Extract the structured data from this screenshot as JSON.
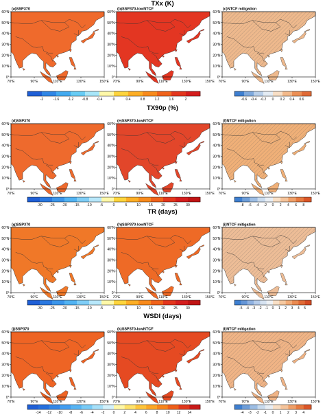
{
  "figure": {
    "rows": [
      {
        "title": "TXx (K)",
        "panels": [
          {
            "id": "(a)",
            "label": "(a)SSP370",
            "fill": "#ef6a2c",
            "hatch": false
          },
          {
            "id": "(b)",
            "label": "(b)SSP370-lowNTCF",
            "fill": "#e33622",
            "hatch": false
          },
          {
            "id": "(c)",
            "label": "(c)NTCF mitigation",
            "fill": "#eeb98d",
            "hatch": true
          }
        ],
        "colorbars": [
          {
            "labels": [
              "-2",
              "-1.6",
              "-1.2",
              "-0.8",
              "-0.4",
              "0",
              "0.4",
              "0.8",
              "1.2",
              "1.6",
              "2"
            ],
            "colors": [
              "#1f5fd6",
              "#2f86e6",
              "#42aaf0",
              "#67ccf5",
              "#a7e6f9",
              "#fff8a8",
              "#fed43c",
              "#fdae25",
              "#f88a1b",
              "#f0621a",
              "#e3361d",
              "#d41d1d"
            ]
          },
          {
            "labels": [
              "-0.6",
              "-0.4",
              "-0.2",
              "0",
              "0.2",
              "0.4",
              "0.6"
            ],
            "colors": [
              "#3e7fd0",
              "#7fa9dc",
              "#b9cfe9",
              "#e4ecf4",
              "#f8dfc6",
              "#f3b98a",
              "#ec8f55",
              "#e06a35"
            ]
          }
        ]
      },
      {
        "title": "TX90p (%)",
        "panels": [
          {
            "id": "(d)",
            "label": "(d)SSP370",
            "fill": "#ee6a2d",
            "hatch": false
          },
          {
            "id": "(e)",
            "label": "(e)SSP370-lowNTCF",
            "fill": "#e2462a",
            "hatch": false
          },
          {
            "id": "(f)",
            "label": "(f)NTCF mitigation",
            "fill": "#f0b078",
            "hatch": true
          }
        ],
        "colorbars": [
          {
            "labels": [
              "-30",
              "-25",
              "-20",
              "-15",
              "-10",
              "-5",
              "0",
              "5",
              "10",
              "15",
              "20",
              "25",
              "30"
            ],
            "colors": [
              "#1f5fd6",
              "#2a78e0",
              "#3b95ea",
              "#52b3f2",
              "#7fcdf6",
              "#b7e7fa",
              "#fff8a8",
              "#fed43c",
              "#fdae25",
              "#f88a1b",
              "#f0621a",
              "#e3361d",
              "#d41d1d",
              "#c01414"
            ]
          },
          {
            "labels": [
              "-8",
              "-6",
              "-4",
              "-2",
              "0",
              "2",
              "4",
              "6",
              "8"
            ],
            "colors": [
              "#3e7fd0",
              "#6d9dd8",
              "#9dbde3",
              "#c9dbee",
              "#e8eef4",
              "#f8dfc6",
              "#f4c39a",
              "#ef9f68",
              "#e67a40",
              "#da5628"
            ]
          }
        ]
      },
      {
        "title": "TR (days)",
        "panels": [
          {
            "id": "(g)",
            "label": "(g)SSP370",
            "fill": "#f07828",
            "hatch": false
          },
          {
            "id": "(h)",
            "label": "(h)SSP370-lowNTCF",
            "fill": "#ee6a26",
            "hatch": false
          },
          {
            "id": "(i)",
            "label": "(i)NTCF mitigation",
            "fill": "#edbd97",
            "hatch": true
          }
        ],
        "colorbars": [
          {
            "labels": [
              "-30",
              "-25",
              "-20",
              "-15",
              "-10",
              "-5",
              "0",
              "5",
              "10",
              "15",
              "20",
              "25",
              "30"
            ],
            "colors": [
              "#1f5fd6",
              "#2a78e0",
              "#3b95ea",
              "#52b3f2",
              "#7fcdf6",
              "#b7e7fa",
              "#fff8a8",
              "#fed43c",
              "#fdae25",
              "#f88a1b",
              "#f0621a",
              "#e3361d",
              "#d41d1d",
              "#c01414"
            ]
          },
          {
            "labels": [
              "-5",
              "-4",
              "-3",
              "-2",
              "-1",
              "0",
              "1",
              "2",
              "3",
              "4",
              "5"
            ],
            "colors": [
              "#3e7fd0",
              "#6495d6",
              "#8fb1df",
              "#b5cbe9",
              "#d6e2f0",
              "#eef1f4",
              "#f8dfc6",
              "#f5c8a0",
              "#f1aa76",
              "#ea8a50",
              "#e06a35",
              "#d44a22"
            ]
          }
        ]
      },
      {
        "title": "WSDI (days)",
        "panels": [
          {
            "id": "(j)",
            "label": "(j)SSP370",
            "fill": "#ee6424",
            "hatch": false
          },
          {
            "id": "(k)",
            "label": "(k)SSP370-lowNTCF",
            "fill": "#e54a22",
            "hatch": false
          },
          {
            "id": "(l)",
            "label": "(l)NTCF mitigation",
            "fill": "#f0b486",
            "hatch": true
          }
        ],
        "colorbars": [
          {
            "labels": [
              "-14",
              "-12",
              "-10",
              "-8",
              "-6",
              "-4",
              "-2",
              "0",
              "2",
              "4",
              "6",
              "8",
              "10",
              "12",
              "14"
            ],
            "colors": [
              "#1f5fd6",
              "#2670de",
              "#3286e6",
              "#419df0",
              "#57b4f3",
              "#78cbf6",
              "#a6e0f9",
              "#d3f1fb",
              "#fff8a8",
              "#fee26a",
              "#fec43a",
              "#fca625",
              "#f7841b",
              "#ee5f1a",
              "#e0371c",
              "#c81a18"
            ]
          },
          {
            "labels": [
              "-4",
              "-3",
              "-2",
              "-1",
              "0",
              "1",
              "2",
              "3",
              "4"
            ],
            "colors": [
              "#3e7fd0",
              "#6d9dd8",
              "#9dbde3",
              "#c9dbee",
              "#e8eef4",
              "#f8dfc6",
              "#f4c39a",
              "#ef9f68",
              "#e67a40",
              "#da5628"
            ]
          }
        ]
      }
    ],
    "lat_labels": [
      "60°N",
      "50°N",
      "40°N",
      "30°N",
      "20°N",
      "10°N",
      "0°"
    ],
    "lon_labels": [
      "70°E",
      "90°E",
      "110°E",
      "130°E",
      "150°E"
    ],
    "ocean_color": "#ffffff",
    "border_color": "#333333"
  },
  "chart_data": {
    "type": "heatmap",
    "variables": [
      "TXx (K)",
      "TX90p (%)",
      "TR (days)",
      "WSDI (days)"
    ],
    "scenarios": [
      "SSP370",
      "SSP370-lowNTCF",
      "NTCF mitigation"
    ],
    "domain": {
      "lon": [
        70,
        150
      ],
      "lat": [
        0,
        60
      ]
    },
    "legend": "bottom"
  }
}
